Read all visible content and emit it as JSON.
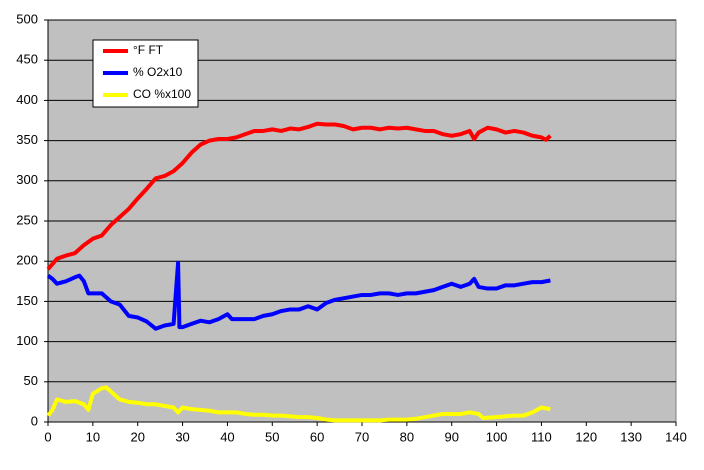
{
  "chart_data": {
    "type": "line",
    "xlim": [
      0,
      140
    ],
    "xticks": [
      0,
      10,
      20,
      30,
      40,
      50,
      60,
      70,
      80,
      90,
      100,
      110,
      120,
      130,
      140
    ],
    "ylim": [
      0,
      500
    ],
    "yticks": [
      0,
      50,
      100,
      150,
      200,
      250,
      300,
      350,
      400,
      450,
      500
    ],
    "grid": true,
    "legend": "upper-left",
    "series": [
      {
        "name": "°F FT",
        "color": "#ff0000",
        "x": [
          0,
          2,
          4,
          6,
          8,
          10,
          12,
          14,
          16,
          18,
          20,
          22,
          24,
          26,
          28,
          30,
          32,
          34,
          36,
          38,
          40,
          42,
          44,
          46,
          48,
          50,
          52,
          54,
          56,
          58,
          60,
          62,
          64,
          66,
          68,
          70,
          72,
          74,
          76,
          78,
          80,
          82,
          84,
          86,
          88,
          90,
          92,
          94,
          95,
          96,
          98,
          100,
          102,
          104,
          106,
          108,
          110,
          111,
          112
        ],
        "values": [
          190,
          203,
          207,
          210,
          220,
          228,
          232,
          245,
          255,
          265,
          278,
          290,
          303,
          306,
          312,
          322,
          335,
          345,
          350,
          352,
          352,
          354,
          358,
          362,
          362,
          364,
          362,
          365,
          364,
          367,
          371,
          370,
          370,
          368,
          364,
          366,
          366,
          364,
          366,
          365,
          366,
          364,
          362,
          362,
          358,
          356,
          358,
          362,
          352,
          360,
          366,
          364,
          360,
          362,
          360,
          356,
          354,
          351,
          356
        ]
      },
      {
        "name": "% O2x10",
        "color": "#0000ff",
        "x": [
          0,
          1,
          2,
          4,
          6,
          7,
          8,
          9,
          12,
          14,
          16,
          18,
          20,
          22,
          24,
          26,
          28,
          29,
          29.3,
          30,
          32,
          34,
          36,
          38,
          40,
          41,
          44,
          46,
          48,
          50,
          52,
          54,
          56,
          58,
          60,
          62,
          64,
          66,
          68,
          70,
          72,
          74,
          76,
          78,
          80,
          82,
          84,
          86,
          88,
          90,
          92,
          94,
          95,
          96,
          98,
          100,
          102,
          104,
          106,
          108,
          110,
          112
        ],
        "values": [
          182,
          178,
          172,
          175,
          180,
          182,
          175,
          160,
          160,
          150,
          146,
          132,
          130,
          125,
          116,
          120,
          122,
          198,
          118,
          118,
          122,
          126,
          124,
          128,
          134,
          128,
          128,
          128,
          132,
          134,
          138,
          140,
          140,
          144,
          140,
          148,
          152,
          154,
          156,
          158,
          158,
          160,
          160,
          158,
          160,
          160,
          162,
          164,
          168,
          172,
          168,
          172,
          178,
          168,
          166,
          166,
          170,
          170,
          172,
          174,
          174,
          176
        ]
      },
      {
        "name": "CO %x100",
        "color": "#ffff00",
        "x": [
          0,
          1,
          2,
          4,
          6,
          8,
          9,
          10,
          12,
          13,
          14,
          16,
          18,
          20,
          22,
          24,
          26,
          28,
          29,
          30,
          32,
          34,
          36,
          38,
          40,
          42,
          44,
          46,
          48,
          50,
          52,
          54,
          56,
          58,
          60,
          62,
          64,
          66,
          68,
          70,
          72,
          74,
          76,
          78,
          80,
          82,
          84,
          86,
          88,
          90,
          92,
          94,
          96,
          97,
          100,
          104,
          106,
          108,
          110,
          112
        ],
        "values": [
          8,
          15,
          28,
          25,
          26,
          22,
          15,
          35,
          42,
          43,
          38,
          28,
          25,
          24,
          22,
          22,
          20,
          18,
          12,
          18,
          16,
          15,
          14,
          12,
          12,
          12,
          10,
          9,
          9,
          8,
          8,
          7,
          6,
          6,
          5,
          3,
          2,
          2,
          2,
          2,
          2,
          2,
          3,
          3,
          3,
          4,
          6,
          8,
          10,
          10,
          10,
          12,
          10,
          5,
          6,
          8,
          8,
          12,
          18,
          16
        ]
      }
    ]
  }
}
